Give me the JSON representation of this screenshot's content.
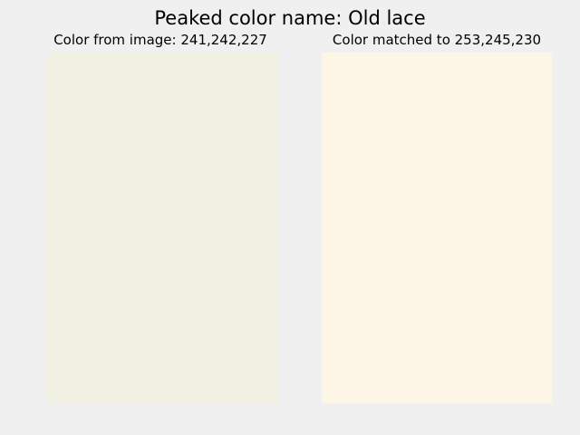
{
  "figure": {
    "title": "Peaked color name: Old lace"
  },
  "panels": [
    {
      "title": "Color from image: 241,242,227",
      "color": "#f1f2e3"
    },
    {
      "title": "Color matched to 253,245,230",
      "color": "#fdf5e6"
    }
  ]
}
